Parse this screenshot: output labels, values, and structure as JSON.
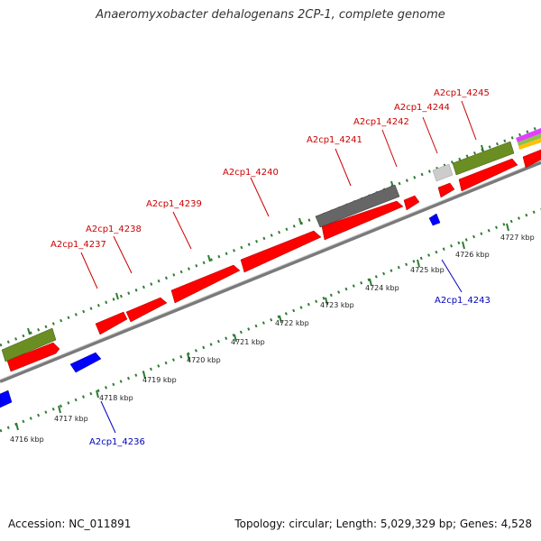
{
  "title": "Anaeromyxobacter dehalogenans 2CP-1, complete genome",
  "footer": {
    "accession": "Accession: NC_011891",
    "summary": "Topology: circular; Length: 5,029,329 bp; Genes: 4,528"
  },
  "colors": {
    "forward_cds": "#ff0000",
    "reverse_cds": "#0000ff",
    "rna_feature": "#6b8e23",
    "pseudogene": "#666666",
    "tick_marks": "#2e7d32",
    "backbone": "#888888",
    "forward_label": "#cc0000",
    "reverse_label": "#0000bb"
  },
  "scale_labels": [
    "4716 kbp",
    "4717 kbp",
    "4718 kbp",
    "4719 kbp",
    "4720 kbp",
    "4721 kbp",
    "4722 kbp",
    "4723 kbp",
    "4724 kbp",
    "4725 kbp",
    "4726 kbp",
    "4727 kbp"
  ],
  "forward_gene_labels": [
    "A2cp1_4237",
    "A2cp1_4238",
    "A2cp1_4239",
    "A2cp1_4240",
    "A2cp1_4241",
    "A2cp1_4242",
    "A2cp1_4244",
    "A2cp1_4245"
  ],
  "reverse_gene_labels": [
    "A2cp1_4236",
    "A2cp1_4243"
  ]
}
